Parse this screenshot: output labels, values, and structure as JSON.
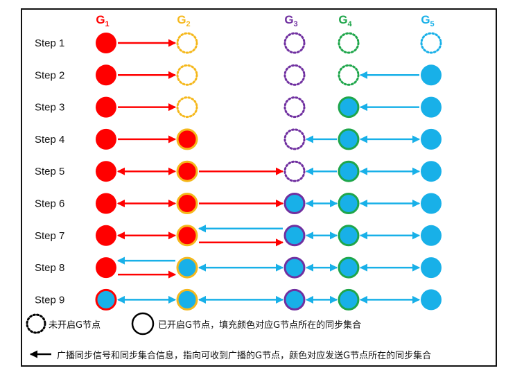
{
  "figure": {
    "groups": [
      {
        "name": "G",
        "sub": "1",
        "color": "#ff0000"
      },
      {
        "name": "G",
        "sub": "2",
        "color": "#f5b81c"
      },
      {
        "name": "G",
        "sub": "3",
        "color": "#7030a0"
      },
      {
        "name": "G",
        "sub": "4",
        "color": "#1fa64b"
      },
      {
        "name": "G",
        "sub": "5",
        "color": "#18b0e8"
      }
    ],
    "steps": [
      {
        "label": "Step 1",
        "nodes": [
          {
            "state": "filled",
            "fill": "red"
          },
          {
            "state": "dotted"
          },
          {
            "state": "dotted"
          },
          {
            "state": "dotted"
          },
          {
            "state": "dotted"
          }
        ],
        "arrows": [
          {
            "from": 0,
            "to": 1,
            "color": "red",
            "bidir": false,
            "lane": 0
          }
        ]
      },
      {
        "label": "Step 2",
        "nodes": [
          {
            "state": "filled",
            "fill": "red"
          },
          {
            "state": "dotted"
          },
          {
            "state": "dotted"
          },
          {
            "state": "dotted"
          },
          {
            "state": "filled",
            "fill": "blue"
          }
        ],
        "arrows": [
          {
            "from": 0,
            "to": 1,
            "color": "red",
            "bidir": false,
            "lane": 0
          },
          {
            "from": 4,
            "to": 3,
            "color": "blue",
            "bidir": false,
            "lane": 0
          }
        ]
      },
      {
        "label": "Step 3",
        "nodes": [
          {
            "state": "filled",
            "fill": "red"
          },
          {
            "state": "dotted"
          },
          {
            "state": "dotted"
          },
          {
            "state": "ring",
            "fill": "blue"
          },
          {
            "state": "filled",
            "fill": "blue"
          }
        ],
        "arrows": [
          {
            "from": 0,
            "to": 1,
            "color": "red",
            "bidir": false,
            "lane": 0
          },
          {
            "from": 4,
            "to": 3,
            "color": "blue",
            "bidir": false,
            "lane": 0
          }
        ]
      },
      {
        "label": "Step 4",
        "nodes": [
          {
            "state": "filled",
            "fill": "red"
          },
          {
            "state": "ring",
            "fill": "red"
          },
          {
            "state": "dotted"
          },
          {
            "state": "ring",
            "fill": "blue"
          },
          {
            "state": "filled",
            "fill": "blue"
          }
        ],
        "arrows": [
          {
            "from": 0,
            "to": 1,
            "color": "red",
            "bidir": false,
            "lane": 0
          },
          {
            "from": 3,
            "to": 2,
            "color": "blue",
            "bidir": false,
            "lane": 0
          },
          {
            "from": 3,
            "to": 4,
            "color": "blue",
            "bidir": true,
            "lane": 0
          }
        ]
      },
      {
        "label": "Step 5",
        "nodes": [
          {
            "state": "filled",
            "fill": "red"
          },
          {
            "state": "ring",
            "fill": "red"
          },
          {
            "state": "dotted"
          },
          {
            "state": "ring",
            "fill": "blue"
          },
          {
            "state": "filled",
            "fill": "blue"
          }
        ],
        "arrows": [
          {
            "from": 0,
            "to": 1,
            "color": "red",
            "bidir": true,
            "lane": 0
          },
          {
            "from": 1,
            "to": 2,
            "color": "red",
            "bidir": false,
            "lane": 0
          },
          {
            "from": 3,
            "to": 2,
            "color": "blue",
            "bidir": false,
            "lane": 0
          },
          {
            "from": 3,
            "to": 4,
            "color": "blue",
            "bidir": true,
            "lane": 0
          }
        ]
      },
      {
        "label": "Step 6",
        "nodes": [
          {
            "state": "filled",
            "fill": "red"
          },
          {
            "state": "ring",
            "fill": "red"
          },
          {
            "state": "ring",
            "fill": "blue"
          },
          {
            "state": "ring",
            "fill": "blue"
          },
          {
            "state": "filled",
            "fill": "blue"
          }
        ],
        "arrows": [
          {
            "from": 0,
            "to": 1,
            "color": "red",
            "bidir": true,
            "lane": 0
          },
          {
            "from": 1,
            "to": 2,
            "color": "red",
            "bidir": false,
            "lane": 0
          },
          {
            "from": 2,
            "to": 3,
            "color": "blue",
            "bidir": true,
            "lane": 0
          },
          {
            "from": 3,
            "to": 4,
            "color": "blue",
            "bidir": true,
            "lane": 0
          }
        ]
      },
      {
        "label": "Step 7",
        "nodes": [
          {
            "state": "filled",
            "fill": "red"
          },
          {
            "state": "ring",
            "fill": "red"
          },
          {
            "state": "ring",
            "fill": "blue"
          },
          {
            "state": "ring",
            "fill": "blue"
          },
          {
            "state": "filled",
            "fill": "blue"
          }
        ],
        "arrows": [
          {
            "from": 0,
            "to": 1,
            "color": "red",
            "bidir": true,
            "lane": 0
          },
          {
            "from": 2,
            "to": 1,
            "color": "blue",
            "bidir": false,
            "lane": -1
          },
          {
            "from": 1,
            "to": 2,
            "color": "red",
            "bidir": false,
            "lane": 1
          },
          {
            "from": 2,
            "to": 3,
            "color": "blue",
            "bidir": true,
            "lane": 0
          },
          {
            "from": 3,
            "to": 4,
            "color": "blue",
            "bidir": true,
            "lane": 0
          }
        ]
      },
      {
        "label": "Step 8",
        "nodes": [
          {
            "state": "filled",
            "fill": "red"
          },
          {
            "state": "ring",
            "fill": "blue"
          },
          {
            "state": "ring",
            "fill": "blue"
          },
          {
            "state": "ring",
            "fill": "blue"
          },
          {
            "state": "filled",
            "fill": "blue"
          }
        ],
        "arrows": [
          {
            "from": 1,
            "to": 0,
            "color": "blue",
            "bidir": false,
            "lane": -1
          },
          {
            "from": 0,
            "to": 1,
            "color": "red",
            "bidir": false,
            "lane": 1
          },
          {
            "from": 1,
            "to": 2,
            "color": "blue",
            "bidir": true,
            "lane": 0
          },
          {
            "from": 2,
            "to": 3,
            "color": "blue",
            "bidir": true,
            "lane": 0
          },
          {
            "from": 3,
            "to": 4,
            "color": "blue",
            "bidir": true,
            "lane": 0
          }
        ]
      },
      {
        "label": "Step 9",
        "nodes": [
          {
            "state": "ring",
            "fill": "blue"
          },
          {
            "state": "ring",
            "fill": "blue"
          },
          {
            "state": "ring",
            "fill": "blue"
          },
          {
            "state": "ring",
            "fill": "blue"
          },
          {
            "state": "filled",
            "fill": "blue"
          }
        ],
        "arrows": [
          {
            "from": 0,
            "to": 1,
            "color": "blue",
            "bidir": true,
            "lane": 0
          },
          {
            "from": 1,
            "to": 2,
            "color": "blue",
            "bidir": true,
            "lane": 0
          },
          {
            "from": 2,
            "to": 3,
            "color": "blue",
            "bidir": true,
            "lane": 0
          },
          {
            "from": 3,
            "to": 4,
            "color": "blue",
            "bidir": true,
            "lane": 0
          }
        ]
      }
    ],
    "fill_colors": {
      "red": "#ff0000",
      "blue": "#18b0e8"
    },
    "legend": {
      "dotted_text": "未开启G节点",
      "ring_text": "已开启G节点，填充颜色对应G节点所在的同步集合",
      "arrow_text": "广播同步信号和同步集合信息，指向可收到广播的G节点，颜色对应发送G节点所在的同步集合"
    }
  }
}
